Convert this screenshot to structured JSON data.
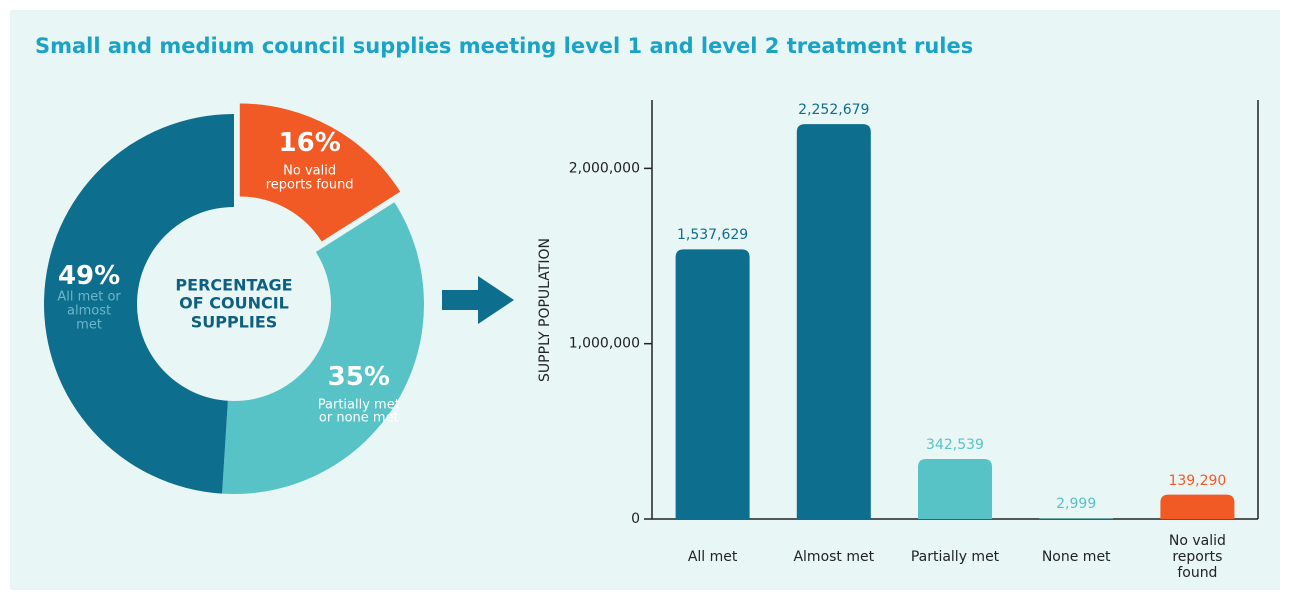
{
  "title": "Small and medium council supplies meeting level 1 and level 2 treatment rules",
  "chart_data": [
    {
      "type": "pie",
      "center_label": "PERCENTAGE\nOF COUNCIL\nSUPPLIES",
      "categories": [
        "No valid\nreports found",
        "Partially met\nor none met",
        "All met or\nalmost\nmet"
      ],
      "values": [
        16,
        35,
        49
      ],
      "value_labels": [
        "16%",
        "35%",
        "49%"
      ],
      "colors": [
        "#f15a24",
        "#57c3c7",
        "#0e6e8e"
      ]
    },
    {
      "type": "bar",
      "ylabel": "SUPPLY POPULATION",
      "categories": [
        "All met",
        "Almost met",
        "Partially met",
        "None met",
        "No valid\nreports found"
      ],
      "values": [
        1537629,
        2252679,
        342539,
        2999,
        139290
      ],
      "value_labels": [
        "1,537,629",
        "2,252,679",
        "342,539",
        "2,999",
        "139,290"
      ],
      "colors": [
        "#0e6e8e",
        "#0e6e8e",
        "#57c3c7",
        "#57c3c7",
        "#f15a24"
      ],
      "ylim": [
        0,
        2390000
      ],
      "yticks": [
        0,
        {
          "value": 1000000,
          "label": "1,000,000"
        },
        {
          "value": 2000000,
          "label": "2,000,000"
        }
      ]
    }
  ]
}
